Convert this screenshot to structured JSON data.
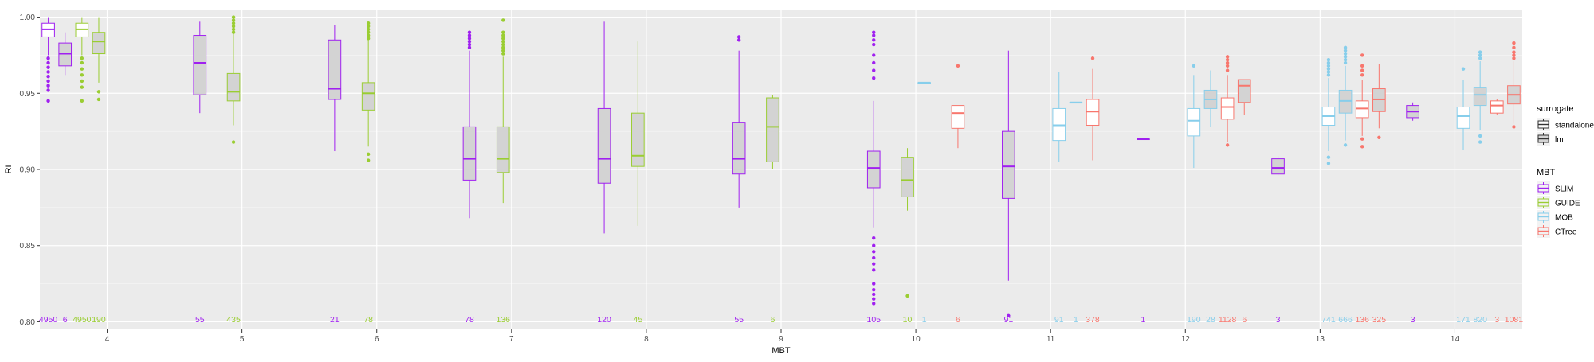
{
  "chart_data": {
    "type": "boxplot",
    "x_label": "MBT",
    "y_label": "RI",
    "ylim": [
      0.795,
      1.005
    ],
    "y_ticks": [
      "0.80",
      "0.85",
      "0.90",
      "0.95",
      "1.00"
    ],
    "categories": [
      "4",
      "5",
      "6",
      "7",
      "8",
      "9",
      "10",
      "11",
      "12",
      "13",
      "14"
    ],
    "grid": true,
    "legend_position": "right",
    "legend_surrogate": {
      "title": "surrogate",
      "items": [
        {
          "label": "standalone",
          "fill": "#ffffff"
        },
        {
          "label": "lm",
          "fill": "#d3d3d3"
        }
      ]
    },
    "legend_mbt": {
      "title": "MBT",
      "items": [
        {
          "label": "SLIM",
          "color": "#a020f0"
        },
        {
          "label": "GUIDE",
          "color": "#9acd32"
        },
        {
          "label": "MOB",
          "color": "#87ceeb"
        },
        {
          "label": "CTree",
          "color": "#f8766d"
        }
      ]
    },
    "boxes": [
      {
        "cat": "4",
        "mbt": "SLIM",
        "surrogate": "standalone",
        "n": "4950",
        "q1": 0.987,
        "median": 0.992,
        "q3": 0.996,
        "wlo": 0.975,
        "whi": 1.0,
        "out": [
          0.973,
          0.97,
          0.967,
          0.964,
          0.961,
          0.958,
          0.955,
          0.952,
          0.945
        ]
      },
      {
        "cat": "4",
        "mbt": "SLIM",
        "surrogate": "lm",
        "n": "6",
        "q1": 0.968,
        "median": 0.976,
        "q3": 0.983,
        "wlo": 0.962,
        "whi": 0.99,
        "out": []
      },
      {
        "cat": "4",
        "mbt": "GUIDE",
        "surrogate": "standalone",
        "n": "4950",
        "q1": 0.987,
        "median": 0.992,
        "q3": 0.996,
        "wlo": 0.975,
        "whi": 1.0,
        "out": [
          0.973,
          0.97,
          0.966,
          0.962,
          0.958,
          0.954,
          0.945
        ]
      },
      {
        "cat": "4",
        "mbt": "GUIDE",
        "surrogate": "lm",
        "n": "190",
        "q1": 0.976,
        "median": 0.984,
        "q3": 0.99,
        "wlo": 0.957,
        "whi": 1.0,
        "out": [
          0.951,
          0.946
        ]
      },
      {
        "cat": "5",
        "mbt": "SLIM",
        "surrogate": "lm",
        "n": "55",
        "q1": 0.949,
        "median": 0.97,
        "q3": 0.988,
        "wlo": 0.937,
        "whi": 0.997,
        "out": []
      },
      {
        "cat": "5",
        "mbt": "GUIDE",
        "surrogate": "lm",
        "n": "435",
        "q1": 0.945,
        "median": 0.951,
        "q3": 0.963,
        "wlo": 0.929,
        "whi": 0.989,
        "out": [
          0.99,
          0.992,
          0.994,
          0.996,
          0.998,
          1.0,
          0.918
        ]
      },
      {
        "cat": "6",
        "mbt": "SLIM",
        "surrogate": "lm",
        "n": "21",
        "q1": 0.946,
        "median": 0.953,
        "q3": 0.985,
        "wlo": 0.912,
        "whi": 0.995,
        "out": []
      },
      {
        "cat": "6",
        "mbt": "GUIDE",
        "surrogate": "lm",
        "n": "78",
        "q1": 0.939,
        "median": 0.95,
        "q3": 0.957,
        "wlo": 0.915,
        "whi": 0.985,
        "out": [
          0.986,
          0.988,
          0.99,
          0.992,
          0.994,
          0.996,
          0.91,
          0.906
        ]
      },
      {
        "cat": "7",
        "mbt": "SLIM",
        "surrogate": "lm",
        "n": "78",
        "q1": 0.893,
        "median": 0.907,
        "q3": 0.928,
        "wlo": 0.868,
        "whi": 0.978,
        "out": [
          0.98,
          0.982,
          0.984,
          0.986,
          0.988,
          0.99
        ]
      },
      {
        "cat": "7",
        "mbt": "GUIDE",
        "surrogate": "lm",
        "n": "136",
        "q1": 0.898,
        "median": 0.907,
        "q3": 0.928,
        "wlo": 0.878,
        "whi": 0.974,
        "out": [
          0.976,
          0.978,
          0.98,
          0.982,
          0.984,
          0.986,
          0.988,
          0.99,
          0.998
        ]
      },
      {
        "cat": "8",
        "mbt": "SLIM",
        "surrogate": "lm",
        "n": "120",
        "q1": 0.891,
        "median": 0.907,
        "q3": 0.94,
        "wlo": 0.858,
        "whi": 0.997,
        "out": []
      },
      {
        "cat": "8",
        "mbt": "GUIDE",
        "surrogate": "lm",
        "n": "45",
        "q1": 0.902,
        "median": 0.909,
        "q3": 0.937,
        "wlo": 0.863,
        "whi": 0.984,
        "out": []
      },
      {
        "cat": "9",
        "mbt": "SLIM",
        "surrogate": "lm",
        "n": "55",
        "q1": 0.897,
        "median": 0.907,
        "q3": 0.931,
        "wlo": 0.875,
        "whi": 0.978,
        "out": [
          0.985,
          0.987
        ]
      },
      {
        "cat": "9",
        "mbt": "GUIDE",
        "surrogate": "lm",
        "n": "6",
        "q1": 0.905,
        "median": 0.928,
        "q3": 0.947,
        "wlo": 0.9,
        "whi": 0.949,
        "out": []
      },
      {
        "cat": "10",
        "mbt": "SLIM",
        "surrogate": "lm",
        "n": "105",
        "q1": 0.888,
        "median": 0.901,
        "q3": 0.912,
        "wlo": 0.862,
        "whi": 0.945,
        "out": [
          0.96,
          0.965,
          0.97,
          0.975,
          0.982,
          0.985,
          0.988,
          0.99,
          0.855,
          0.85,
          0.846,
          0.842,
          0.838,
          0.834,
          0.825,
          0.821,
          0.818,
          0.815,
          0.812
        ]
      },
      {
        "cat": "10",
        "mbt": "GUIDE",
        "surrogate": "lm",
        "n": "10",
        "q1": 0.882,
        "median": 0.893,
        "q3": 0.908,
        "wlo": 0.873,
        "whi": 0.914,
        "out": [
          0.817
        ]
      },
      {
        "cat": "10",
        "mbt": "MOB",
        "surrogate": "standalone",
        "n": "1",
        "q1": 0.957,
        "median": 0.957,
        "q3": 0.957,
        "wlo": 0.957,
        "whi": 0.957,
        "out": []
      },
      {
        "cat": "10",
        "mbt": "CTree",
        "surrogate": "standalone",
        "n": "6",
        "q1": 0.927,
        "median": 0.937,
        "q3": 0.942,
        "wlo": 0.914,
        "whi": 0.942,
        "out": [
          0.968
        ]
      },
      {
        "cat": "11",
        "mbt": "SLIM",
        "surrogate": "lm",
        "n": "91",
        "q1": 0.881,
        "median": 0.902,
        "q3": 0.925,
        "wlo": 0.827,
        "whi": 0.978,
        "out": [
          0.804
        ]
      },
      {
        "cat": "11",
        "mbt": "MOB",
        "surrogate": "standalone",
        "n": "91",
        "q1": 0.919,
        "median": 0.929,
        "q3": 0.94,
        "wlo": 0.905,
        "whi": 0.964,
        "out": []
      },
      {
        "cat": "11",
        "mbt": "MOB",
        "surrogate": "lm",
        "n": "1",
        "q1": 0.944,
        "median": 0.944,
        "q3": 0.944,
        "wlo": 0.944,
        "whi": 0.944,
        "out": []
      },
      {
        "cat": "11",
        "mbt": "CTree",
        "surrogate": "standalone",
        "n": "378",
        "q1": 0.929,
        "median": 0.938,
        "q3": 0.946,
        "wlo": 0.906,
        "whi": 0.966,
        "out": [
          0.973
        ]
      },
      {
        "cat": "12",
        "mbt": "SLIM",
        "surrogate": "lm",
        "n": "1",
        "q1": 0.92,
        "median": 0.92,
        "q3": 0.92,
        "wlo": 0.92,
        "whi": 0.92,
        "out": []
      },
      {
        "cat": "12",
        "mbt": "MOB",
        "surrogate": "standalone",
        "n": "190",
        "q1": 0.922,
        "median": 0.932,
        "q3": 0.94,
        "wlo": 0.901,
        "whi": 0.962,
        "out": [
          0.968
        ]
      },
      {
        "cat": "12",
        "mbt": "MOB",
        "surrogate": "lm",
        "n": "28",
        "q1": 0.94,
        "median": 0.946,
        "q3": 0.952,
        "wlo": 0.928,
        "whi": 0.965,
        "out": []
      },
      {
        "cat": "12",
        "mbt": "CTree",
        "surrogate": "standalone",
        "n": "1128",
        "q1": 0.933,
        "median": 0.941,
        "q3": 0.947,
        "wlo": 0.918,
        "whi": 0.962,
        "out": [
          0.965,
          0.968,
          0.97,
          0.972,
          0.974,
          0.916
        ]
      },
      {
        "cat": "12",
        "mbt": "CTree",
        "surrogate": "lm",
        "n": "6",
        "q1": 0.944,
        "median": 0.955,
        "q3": 0.959,
        "wlo": 0.936,
        "whi": 0.959,
        "out": []
      },
      {
        "cat": "13",
        "mbt": "SLIM",
        "surrogate": "lm",
        "n": "3",
        "q1": 0.897,
        "median": 0.901,
        "q3": 0.907,
        "wlo": 0.896,
        "whi": 0.909,
        "out": []
      },
      {
        "cat": "13",
        "mbt": "MOB",
        "surrogate": "standalone",
        "n": "741",
        "q1": 0.929,
        "median": 0.935,
        "q3": 0.941,
        "wlo": 0.912,
        "whi": 0.96,
        "out": [
          0.962,
          0.964,
          0.966,
          0.968,
          0.97,
          0.972,
          0.908,
          0.904
        ]
      },
      {
        "cat": "13",
        "mbt": "MOB",
        "surrogate": "lm",
        "n": "666",
        "q1": 0.937,
        "median": 0.945,
        "q3": 0.952,
        "wlo": 0.919,
        "whi": 0.968,
        "out": [
          0.97,
          0.972,
          0.974,
          0.976,
          0.978,
          0.98,
          0.916
        ]
      },
      {
        "cat": "13",
        "mbt": "CTree",
        "surrogate": "standalone",
        "n": "136",
        "q1": 0.934,
        "median": 0.94,
        "q3": 0.945,
        "wlo": 0.922,
        "whi": 0.959,
        "out": [
          0.962,
          0.965,
          0.968,
          0.975,
          0.92,
          0.915
        ]
      },
      {
        "cat": "13",
        "mbt": "CTree",
        "surrogate": "lm",
        "n": "325",
        "q1": 0.938,
        "median": 0.946,
        "q3": 0.953,
        "wlo": 0.927,
        "whi": 0.969,
        "out": [
          0.921
        ]
      },
      {
        "cat": "14",
        "mbt": "SLIM",
        "surrogate": "lm",
        "n": "3",
        "q1": 0.934,
        "median": 0.938,
        "q3": 0.942,
        "wlo": 0.932,
        "whi": 0.944,
        "out": []
      },
      {
        "cat": "14",
        "mbt": "MOB",
        "surrogate": "standalone",
        "n": "171",
        "q1": 0.927,
        "median": 0.935,
        "q3": 0.941,
        "wlo": 0.913,
        "whi": 0.959,
        "out": [
          0.966
        ]
      },
      {
        "cat": "14",
        "mbt": "MOB",
        "surrogate": "lm",
        "n": "820",
        "q1": 0.942,
        "median": 0.949,
        "q3": 0.954,
        "wlo": 0.926,
        "whi": 0.971,
        "out": [
          0.973,
          0.975,
          0.977,
          0.922,
          0.918
        ]
      },
      {
        "cat": "14",
        "mbt": "CTree",
        "surrogate": "standalone",
        "n": "3",
        "q1": 0.937,
        "median": 0.942,
        "q3": 0.945,
        "wlo": 0.936,
        "whi": 0.946,
        "out": []
      },
      {
        "cat": "14",
        "mbt": "CTree",
        "surrogate": "lm",
        "n": "1081",
        "q1": 0.943,
        "median": 0.949,
        "q3": 0.955,
        "wlo": 0.93,
        "whi": 0.971,
        "out": [
          0.973,
          0.975,
          0.977,
          0.98,
          0.983,
          0.928
        ]
      }
    ]
  }
}
